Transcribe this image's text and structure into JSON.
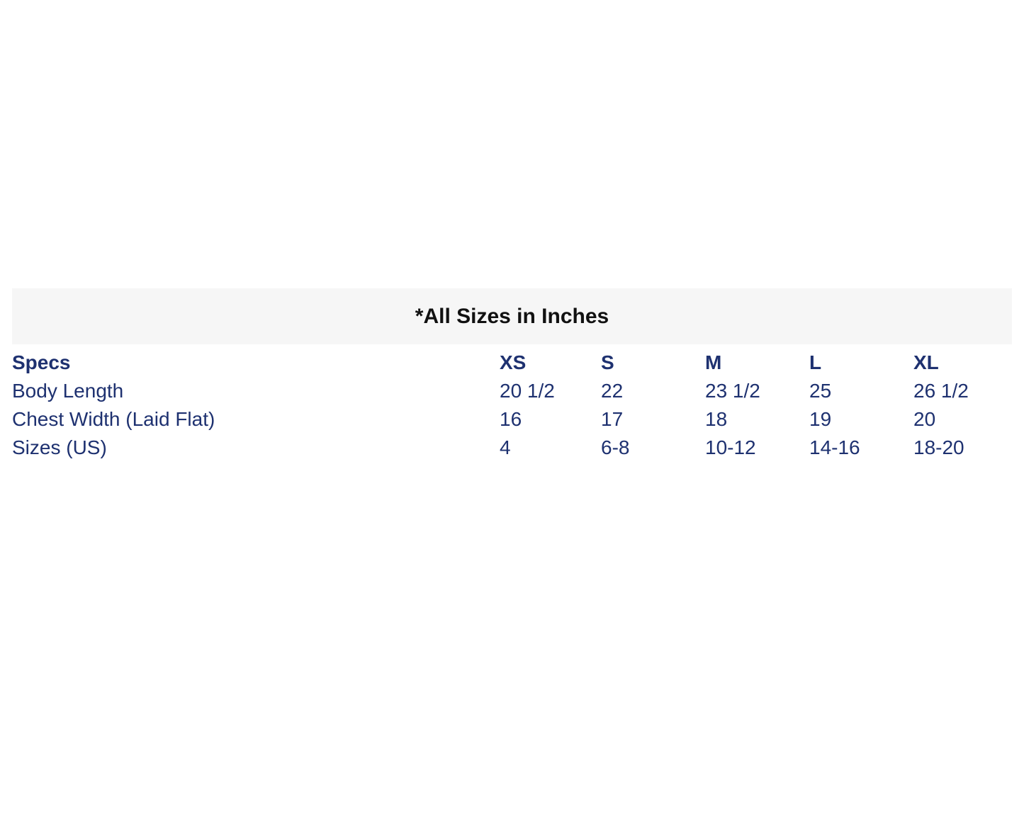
{
  "banner": {
    "text": "*All Sizes in Inches",
    "bg": "#f6f6f6",
    "text_color": "#111111"
  },
  "size_table": {
    "accent_color": "#1e3170",
    "columns": [
      "Specs",
      "XS",
      "S",
      "M",
      "L",
      "XL"
    ],
    "rows": [
      {
        "label": "Body Length",
        "values": [
          "20 1/2",
          "22",
          "23 1/2",
          "25",
          "26 1/2"
        ]
      },
      {
        "label": "Chest Width (Laid Flat)",
        "values": [
          "16",
          "17",
          "18",
          "19",
          "20"
        ]
      },
      {
        "label": "Sizes (US)",
        "values": [
          "4",
          "6-8",
          "10-12",
          "14-16",
          "18-20"
        ]
      }
    ]
  },
  "chart_data": {
    "type": "table",
    "title": "*All Sizes in Inches",
    "columns": [
      "Specs",
      "XS",
      "S",
      "M",
      "L",
      "XL"
    ],
    "rows": [
      [
        "Body Length",
        "20 1/2",
        "22",
        "23 1/2",
        "25",
        "26 1/2"
      ],
      [
        "Chest Width (Laid Flat)",
        "16",
        "17",
        "18",
        "19",
        "20"
      ],
      [
        "Sizes (US)",
        "4",
        "6-8",
        "10-12",
        "14-16",
        "18-20"
      ]
    ]
  }
}
